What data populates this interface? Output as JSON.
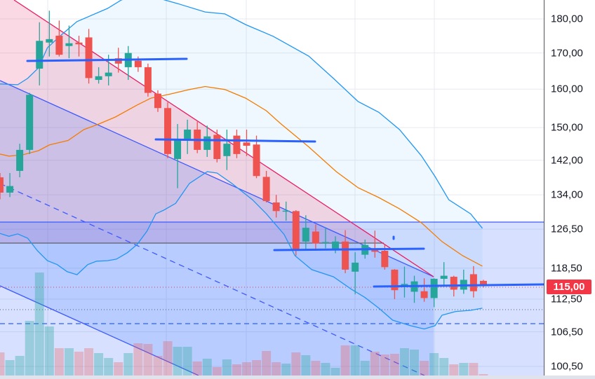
{
  "chart_data": {
    "type": "candlestick",
    "title": "",
    "scale": "log",
    "ylim": [
      99.5,
      188
    ],
    "y_ticks": [
      "180,00",
      "170,00",
      "160,00",
      "150,00",
      "142,00",
      "134,00",
      "126,50",
      "118,50",
      "112,50",
      "106,50",
      "100,50"
    ],
    "y_tick_values": [
      180,
      170,
      160,
      150,
      142,
      134,
      126.5,
      118.5,
      112.5,
      106.5,
      100.5
    ],
    "last_price": 115.0,
    "last_price_label": "115,00",
    "candles_ohlc": [
      [
        138,
        139,
        133,
        134.5
      ],
      [
        134.5,
        139,
        133.5,
        136
      ],
      [
        139.5,
        146,
        138,
        144.5
      ],
      [
        144.5,
        159,
        143.5,
        158.5
      ],
      [
        165.6,
        179,
        161,
        173.5
      ],
      [
        173,
        182.5,
        169,
        174
      ],
      [
        175,
        179.5,
        169,
        169.5
      ],
      [
        172,
        178,
        168.5,
        172.8
      ],
      [
        173,
        175,
        169,
        172.5
      ],
      [
        174.5,
        177,
        161.5,
        163
      ],
      [
        162.5,
        166,
        161.5,
        163.5
      ],
      [
        163.5,
        169.5,
        161,
        164.5
      ],
      [
        168.5,
        171.5,
        164.5,
        167
      ],
      [
        166,
        172,
        162.5,
        170
      ],
      [
        167.8,
        169,
        164.7,
        166
      ],
      [
        166,
        167,
        158,
        159
      ],
      [
        158.8,
        159.7,
        154,
        155
      ],
      [
        155,
        156.5,
        142.5,
        143.5
      ],
      [
        142.3,
        150.9,
        135.5,
        147.2
      ],
      [
        147,
        152,
        143.5,
        149.5
      ],
      [
        149.5,
        151.5,
        143.7,
        144.5
      ],
      [
        144.5,
        150.5,
        142.8,
        147.8
      ],
      [
        148.2,
        149.5,
        141.5,
        142.3
      ],
      [
        143,
        149.5,
        139.7,
        146
      ],
      [
        148,
        149.5,
        142.5,
        143.5
      ],
      [
        146.3,
        149.5,
        143,
        145.5
      ],
      [
        145.8,
        148,
        137.8,
        138.3
      ],
      [
        138.1,
        139.5,
        132.3,
        132.6
      ],
      [
        132.3,
        134,
        129,
        130.4
      ],
      [
        130.3,
        132.5,
        128.3,
        130.5
      ],
      [
        130.4,
        130.6,
        121,
        122
      ],
      [
        123.9,
        129.5,
        122,
        126.8
      ],
      [
        126,
        127.5,
        122,
        123.5
      ],
      [
        123.6,
        126.8,
        122.5,
        123.8
      ],
      [
        122.2,
        125,
        121.5,
        123.9
      ],
      [
        123.9,
        126.3,
        117.5,
        118.2
      ],
      [
        117.8,
        121.7,
        113.4,
        119.6
      ],
      [
        121.2,
        124.3,
        120.4,
        123.2
      ],
      [
        122.5,
        126.2,
        120.6,
        121.8
      ],
      [
        122,
        123.2,
        118.2,
        118.7
      ],
      [
        118.2,
        118.3,
        112.5,
        114.2
      ],
      [
        114.8,
        118.8,
        112.8,
        115.4
      ],
      [
        113.9,
        117,
        111.8,
        115.9
      ],
      [
        114,
        116.5,
        112,
        112.7
      ],
      [
        112.7,
        116.5,
        111,
        116.4
      ],
      [
        116.4,
        119.7,
        115,
        117
      ],
      [
        116.8,
        117,
        113,
        114.3
      ],
      [
        114.3,
        118.2,
        113.5,
        116.2
      ],
      [
        117.3,
        118.9,
        112.8,
        114
      ],
      [
        116,
        116.2,
        114.7,
        115
      ]
    ],
    "volume": [
      33,
      22,
      28,
      78,
      147,
      70,
      39,
      39,
      34,
      39,
      32,
      25,
      19,
      32,
      46,
      45,
      28,
      49,
      41,
      41,
      20,
      24,
      12,
      23,
      16,
      19,
      22,
      35,
      19,
      17,
      33,
      29,
      21,
      18,
      11,
      43,
      43,
      21,
      34,
      30,
      31,
      39,
      37,
      21,
      32,
      25,
      16,
      18,
      18,
      2
    ],
    "bollinger_upper": [
      [
        0,
        161.4
      ],
      [
        1.8,
        161.2
      ],
      [
        2.8,
        162.9
      ],
      [
        3.9,
        165.8
      ],
      [
        4.8,
        171.5
      ],
      [
        6.2,
        175.2
      ],
      [
        7.8,
        179.2
      ],
      [
        10.9,
        183.2
      ],
      [
        12.3,
        185.8
      ],
      [
        14.5,
        188
      ],
      [
        16.7,
        185.8
      ],
      [
        18,
        184.7
      ],
      [
        20.8,
        182.1
      ],
      [
        22.8,
        181.5
      ],
      [
        24.9,
        178.3
      ],
      [
        27.7,
        174.8
      ],
      [
        31.3,
        169.1
      ],
      [
        33.8,
        162.9
      ],
      [
        36.3,
        156.7
      ],
      [
        38.4,
        153.9
      ],
      [
        40.5,
        149.5
      ],
      [
        42.7,
        143.1
      ],
      [
        44.1,
        138.2
      ],
      [
        45.5,
        132.9
      ],
      [
        47.7,
        129.8
      ],
      [
        48.9,
        126.7
      ]
    ],
    "bollinger_middle": [
      [
        0,
        143.5
      ],
      [
        0.9,
        143
      ],
      [
        2.3,
        143.3
      ],
      [
        3.9,
        144.3
      ],
      [
        5,
        145.7
      ],
      [
        6.9,
        146.8
      ],
      [
        8.5,
        149.5
      ],
      [
        10,
        150.9
      ],
      [
        11.7,
        152.7
      ],
      [
        13.9,
        155.8
      ],
      [
        15.3,
        157.6
      ],
      [
        17.1,
        158.6
      ],
      [
        19.2,
        159.9
      ],
      [
        20.8,
        160.7
      ],
      [
        22.8,
        159.9
      ],
      [
        24.9,
        157.6
      ],
      [
        27,
        154.3
      ],
      [
        28.4,
        151.1
      ],
      [
        31.3,
        145.2
      ],
      [
        34.1,
        139.3
      ],
      [
        36.3,
        135.6
      ],
      [
        38.4,
        133.4
      ],
      [
        40.5,
        130.9
      ],
      [
        42.7,
        127.9
      ],
      [
        44.8,
        123.9
      ],
      [
        46.9,
        121
      ],
      [
        48.9,
        118.9
      ]
    ],
    "bollinger_lower": [
      [
        0,
        125.6
      ],
      [
        0.9,
        125
      ],
      [
        1.8,
        125.5
      ],
      [
        2.8,
        124.6
      ],
      [
        3.8,
        122
      ],
      [
        4.8,
        120
      ],
      [
        5.8,
        119.2
      ],
      [
        6.8,
        117.8
      ],
      [
        7.8,
        117.2
      ],
      [
        8.9,
        119.2
      ],
      [
        9.8,
        119.9
      ],
      [
        10.9,
        120
      ],
      [
        11.8,
        120.3
      ],
      [
        12.9,
        121.6
      ],
      [
        13.9,
        123.3
      ],
      [
        14.9,
        126.1
      ],
      [
        15.8,
        129.8
      ],
      [
        16.6,
        130.6
      ],
      [
        17.8,
        132.1
      ],
      [
        19.2,
        136.6
      ],
      [
        21,
        139.3
      ],
      [
        22,
        139
      ],
      [
        23.5,
        136.6
      ],
      [
        25.6,
        132.9
      ],
      [
        27,
        129.8
      ],
      [
        28.8,
        125.4
      ],
      [
        29.9,
        121
      ],
      [
        31.6,
        118.2
      ],
      [
        33.8,
        116.8
      ],
      [
        35.6,
        114.4
      ],
      [
        37,
        112.8
      ],
      [
        38.4,
        110.8
      ],
      [
        39.8,
        108.6
      ],
      [
        41.6,
        107.6
      ],
      [
        43,
        107
      ],
      [
        44.1,
        107.6
      ],
      [
        44.8,
        109.5
      ],
      [
        46.2,
        110.2
      ],
      [
        47.7,
        110.4
      ],
      [
        48.9,
        110.8
      ]
    ],
    "colors": {
      "up": "#26a69a",
      "down": "#ef5350",
      "bb": "#2196f3",
      "basis": "#f57c00",
      "drawing": "#2962ff",
      "trend_red": "#e91e63"
    }
  }
}
